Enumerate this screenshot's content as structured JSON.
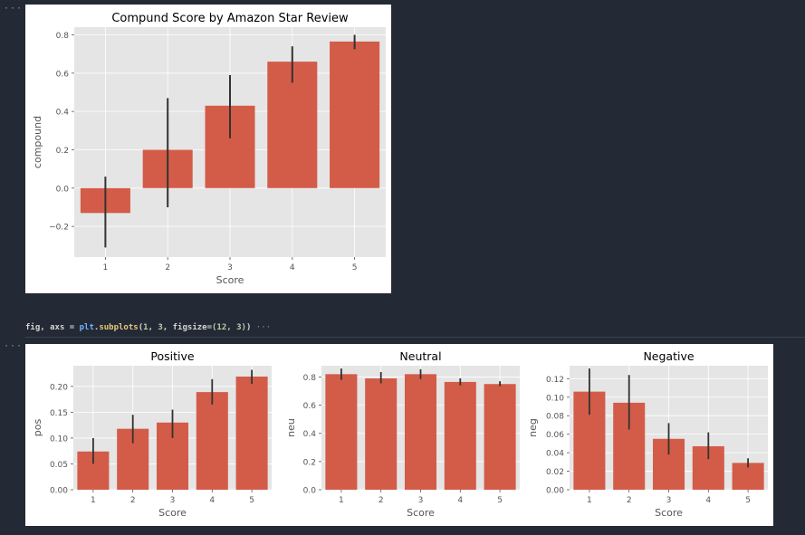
{
  "cells": {
    "marker": "···",
    "code": {
      "var1": "fig",
      "comma": ", ",
      "var2": "axs",
      "eq": " = ",
      "module": "plt",
      "dot": ".",
      "func": "subplots",
      "args_open": "(",
      "arg1": "1",
      "sep1": ", ",
      "arg2": "3",
      "sep2": ", ",
      "kw": "figsize=",
      "tuple": "(12, 3)",
      "args_close": ")",
      "ellipsis": " ···"
    }
  },
  "colors": {
    "bar": "#d35c48",
    "errorbar": "#333333",
    "plot_bg": "#e5e5e5",
    "grid": "#ffffff",
    "tick_text": "#555555",
    "title_text": "#000000"
  },
  "chart_data": [
    {
      "type": "bar",
      "title": "Compund Score by Amazon Star Review",
      "xlabel": "Score",
      "ylabel": "compound",
      "categories": [
        "1",
        "2",
        "3",
        "4",
        "5"
      ],
      "values": [
        -0.13,
        0.2,
        0.43,
        0.66,
        0.765
      ],
      "error_low": [
        -0.31,
        -0.1,
        0.26,
        0.55,
        0.725
      ],
      "error_high": [
        0.06,
        0.47,
        0.59,
        0.74,
        0.8
      ],
      "ylim": [
        -0.36,
        0.84
      ],
      "yticks": [
        -0.2,
        0.0,
        0.2,
        0.4,
        0.6,
        0.8
      ],
      "ytick_labels": [
        "−0.2",
        "0.0",
        "0.2",
        "0.4",
        "0.6",
        "0.8"
      ],
      "grid": true
    },
    {
      "type": "bar",
      "title": "Positive",
      "xlabel": "Score",
      "ylabel": "pos",
      "categories": [
        "1",
        "2",
        "3",
        "4",
        "5"
      ],
      "values": [
        0.074,
        0.118,
        0.13,
        0.189,
        0.219
      ],
      "error_low": [
        0.05,
        0.09,
        0.1,
        0.165,
        0.205
      ],
      "error_high": [
        0.1,
        0.145,
        0.155,
        0.214,
        0.232
      ],
      "ylim": [
        0,
        0.24
      ],
      "yticks": [
        0,
        0.05,
        0.1,
        0.15,
        0.2
      ],
      "ytick_labels": [
        "0.00",
        "0.05",
        "0.10",
        "0.15",
        "0.20"
      ],
      "grid": true
    },
    {
      "type": "bar",
      "title": "Neutral",
      "xlabel": "Score",
      "ylabel": "neu",
      "categories": [
        "1",
        "2",
        "3",
        "4",
        "5"
      ],
      "values": [
        0.82,
        0.79,
        0.82,
        0.765,
        0.75
      ],
      "error_low": [
        0.78,
        0.755,
        0.785,
        0.74,
        0.735
      ],
      "error_high": [
        0.86,
        0.835,
        0.855,
        0.79,
        0.77
      ],
      "ylim": [
        0,
        0.88
      ],
      "yticks": [
        0,
        0.2,
        0.4,
        0.6,
        0.8
      ],
      "ytick_labels": [
        "0.0",
        "0.2",
        "0.4",
        "0.6",
        "0.8"
      ],
      "grid": true
    },
    {
      "type": "bar",
      "title": "Negative",
      "xlabel": "Score",
      "ylabel": "neg",
      "categories": [
        "1",
        "2",
        "3",
        "4",
        "5"
      ],
      "values": [
        0.106,
        0.094,
        0.055,
        0.047,
        0.029
      ],
      "error_low": [
        0.081,
        0.065,
        0.038,
        0.033,
        0.024
      ],
      "error_high": [
        0.131,
        0.124,
        0.072,
        0.062,
        0.034
      ],
      "ylim": [
        0,
        0.134
      ],
      "yticks": [
        0,
        0.02,
        0.04,
        0.06,
        0.08,
        0.1,
        0.12
      ],
      "ytick_labels": [
        "0.00",
        "0.02",
        "0.04",
        "0.06",
        "0.08",
        "0.10",
        "0.12"
      ],
      "grid": true
    }
  ]
}
